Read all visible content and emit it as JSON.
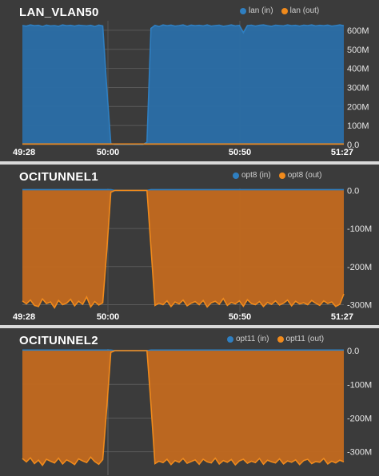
{
  "colors": {
    "in": "#2f7fc1",
    "out": "#f08a1c",
    "in_fill": "#2a6ea8",
    "out_fill": "#c2691f",
    "background": "#3b3b3b",
    "grid": "#5a5a5a"
  },
  "chart_data": [
    {
      "type": "area",
      "title": "LAN_VLAN50",
      "legend": [
        "lan (in)",
        "lan (out)"
      ],
      "x_ticks": [
        "49:28",
        "50:00",
        "50:50",
        "51:27"
      ],
      "y_ticks": [
        "0.0",
        "100M",
        "200M",
        "300M",
        "400M",
        "500M",
        "600M"
      ],
      "ylim": [
        0,
        650
      ],
      "y_unit": "M",
      "x": [
        0,
        1,
        2,
        3,
        4,
        5,
        6,
        7,
        8,
        9,
        10,
        11,
        12,
        13,
        14,
        15,
        16,
        17,
        18,
        19,
        20,
        21,
        22,
        23,
        24,
        25,
        26,
        27,
        28,
        29,
        30,
        31,
        32,
        33,
        34,
        35,
        36,
        37,
        38,
        39,
        40,
        41,
        42,
        43,
        44,
        45,
        46,
        47,
        48,
        49,
        50,
        51,
        52,
        53,
        54,
        55,
        56,
        57,
        58,
        59,
        60,
        61,
        62,
        63,
        64,
        65,
        66,
        67,
        68,
        69,
        70,
        71,
        72,
        73,
        74,
        75,
        76,
        77,
        78,
        79,
        80
      ],
      "series": [
        {
          "name": "lan (in)",
          "values": [
            625,
            622,
            628,
            624,
            626,
            620,
            627,
            623,
            625,
            621,
            628,
            624,
            626,
            622,
            627,
            625,
            623,
            626,
            620,
            627,
            623,
            300,
            5,
            0,
            0,
            0,
            0,
            0,
            0,
            0,
            0,
            12,
            610,
            626,
            620,
            628,
            624,
            627,
            622,
            625,
            628,
            621,
            627,
            624,
            626,
            623,
            628,
            622,
            625,
            627,
            621,
            624,
            628,
            623,
            626,
            588,
            625,
            627,
            622,
            626,
            628,
            624,
            621,
            627,
            625,
            623,
            628,
            624,
            626,
            622,
            627,
            625,
            628,
            623,
            626,
            624,
            627,
            622,
            625,
            628,
            624
          ]
        },
        {
          "name": "lan (out)",
          "values": [
            3,
            3,
            3,
            3,
            3,
            3,
            3,
            3,
            3,
            3,
            3,
            3,
            3,
            3,
            3,
            3,
            3,
            3,
            3,
            3,
            3,
            3,
            3,
            3,
            3,
            3,
            3,
            3,
            3,
            3,
            3,
            3,
            3,
            3,
            3,
            3,
            3,
            3,
            3,
            3,
            3,
            3,
            3,
            3,
            3,
            3,
            3,
            3,
            3,
            3,
            3,
            3,
            3,
            3,
            3,
            3,
            3,
            3,
            3,
            3,
            3,
            3,
            3,
            3,
            3,
            3,
            3,
            3,
            3,
            3,
            3,
            3,
            3,
            3,
            3,
            3,
            3,
            3,
            3,
            3,
            3
          ]
        }
      ]
    },
    {
      "type": "area",
      "title": "OCITUNNEL1",
      "legend": [
        "opt8 (in)",
        "opt8 (out)"
      ],
      "x_ticks": [
        "49:28",
        "50:00",
        "50:50",
        "51:27"
      ],
      "y_ticks": [
        "0.0",
        "-100M",
        "-200M",
        "-300M"
      ],
      "ylim": [
        -320,
        5
      ],
      "y_unit": "M",
      "x": [
        0,
        1,
        2,
        3,
        4,
        5,
        6,
        7,
        8,
        9,
        10,
        11,
        12,
        13,
        14,
        15,
        16,
        17,
        18,
        19,
        20,
        21,
        22,
        23,
        24,
        25,
        26,
        27,
        28,
        29,
        30,
        31,
        32,
        33,
        34,
        35,
        36,
        37,
        38,
        39,
        40,
        41,
        42,
        43,
        44,
        45,
        46,
        47,
        48,
        49,
        50,
        51,
        52,
        53,
        54,
        55,
        56,
        57,
        58,
        59,
        60,
        61,
        62,
        63,
        64,
        65,
        66,
        67,
        68,
        69,
        70,
        71,
        72,
        73,
        74,
        75,
        76,
        77,
        78,
        79,
        80
      ],
      "series": [
        {
          "name": "opt8 (in)",
          "values": [
            2,
            2,
            2,
            2,
            2,
            2,
            2,
            2,
            2,
            2,
            2,
            2,
            2,
            2,
            2,
            2,
            2,
            2,
            2,
            2,
            2,
            2,
            2,
            0,
            0,
            0,
            0,
            0,
            0,
            0,
            0,
            0,
            2,
            2,
            2,
            2,
            2,
            2,
            2,
            2,
            2,
            2,
            2,
            2,
            2,
            2,
            2,
            2,
            2,
            2,
            2,
            2,
            2,
            2,
            2,
            2,
            2,
            2,
            2,
            2,
            2,
            2,
            2,
            2,
            2,
            2,
            2,
            2,
            2,
            2,
            2,
            2,
            2,
            2,
            2,
            2,
            2,
            2,
            2,
            2,
            2
          ]
        },
        {
          "name": "opt8 (out)",
          "values": [
            -290,
            -298,
            -288,
            -302,
            -305,
            -285,
            -297,
            -293,
            -308,
            -289,
            -300,
            -296,
            -286,
            -303,
            -291,
            -299,
            -280,
            -306,
            -292,
            -301,
            -295,
            -160,
            -5,
            0,
            0,
            0,
            0,
            0,
            0,
            0,
            0,
            0,
            -150,
            -302,
            -296,
            -300,
            -290,
            -305,
            -293,
            -298,
            -288,
            -303,
            -296,
            -292,
            -300,
            -289,
            -306,
            -295,
            -291,
            -299,
            -284,
            -302,
            -294,
            -298,
            -290,
            -304,
            -287,
            -297,
            -300,
            -292,
            -305,
            -294,
            -299,
            -290,
            -301,
            -296,
            -288,
            -303,
            -291,
            -298,
            -295,
            -300,
            -289,
            -296,
            -302,
            -290,
            -297,
            -293,
            -305,
            -299,
            -272
          ]
        }
      ]
    },
    {
      "type": "area",
      "title": "OCITUNNEL2",
      "legend": [
        "opt11 (in)",
        "opt11 (out)"
      ],
      "x_ticks": [],
      "y_ticks": [
        "0.0",
        "-100M",
        "-200M",
        "-300M"
      ],
      "ylim": [
        -360,
        5
      ],
      "y_unit": "M",
      "x": [
        0,
        1,
        2,
        3,
        4,
        5,
        6,
        7,
        8,
        9,
        10,
        11,
        12,
        13,
        14,
        15,
        16,
        17,
        18,
        19,
        20,
        21,
        22,
        23,
        24,
        25,
        26,
        27,
        28,
        29,
        30,
        31,
        32,
        33,
        34,
        35,
        36,
        37,
        38,
        39,
        40,
        41,
        42,
        43,
        44,
        45,
        46,
        47,
        48,
        49,
        50,
        51,
        52,
        53,
        54,
        55,
        56,
        57,
        58,
        59,
        60,
        61,
        62,
        63,
        64,
        65,
        66,
        67,
        68,
        69,
        70,
        71,
        72,
        73,
        74,
        75,
        76,
        77,
        78,
        79,
        80
      ],
      "series": [
        {
          "name": "opt11 (in)",
          "values": [
            2,
            2,
            2,
            2,
            2,
            2,
            2,
            2,
            2,
            2,
            2,
            2,
            2,
            2,
            2,
            2,
            2,
            2,
            2,
            2,
            2,
            2,
            2,
            0,
            0,
            0,
            0,
            0,
            0,
            0,
            0,
            0,
            2,
            2,
            2,
            2,
            2,
            2,
            2,
            2,
            2,
            2,
            2,
            2,
            2,
            2,
            2,
            2,
            2,
            2,
            2,
            2,
            2,
            2,
            2,
            2,
            2,
            2,
            2,
            2,
            2,
            2,
            2,
            2,
            2,
            2,
            2,
            2,
            2,
            2,
            2,
            2,
            2,
            2,
            2,
            2,
            2,
            2,
            2,
            2,
            2
          ]
        },
        {
          "name": "opt11 (out)",
          "values": [
            -320,
            -330,
            -318,
            -335,
            -325,
            -340,
            -322,
            -328,
            -333,
            -319,
            -336,
            -324,
            -330,
            -338,
            -321,
            -327,
            -332,
            -316,
            -329,
            -337,
            -323,
            -170,
            -5,
            0,
            0,
            0,
            0,
            0,
            0,
            0,
            0,
            0,
            -160,
            -335,
            -328,
            -332,
            -322,
            -338,
            -326,
            -331,
            -320,
            -334,
            -329,
            -324,
            -337,
            -322,
            -330,
            -333,
            -319,
            -336,
            -326,
            -331,
            -323,
            -339,
            -327,
            -322,
            -334,
            -328,
            -332,
            -320,
            -337,
            -325,
            -330,
            -333,
            -321,
            -336,
            -327,
            -331,
            -324,
            -338,
            -326,
            -322,
            -335,
            -329,
            -331,
            -320,
            -336,
            -328,
            -333,
            -325,
            -330
          ]
        }
      ]
    }
  ]
}
